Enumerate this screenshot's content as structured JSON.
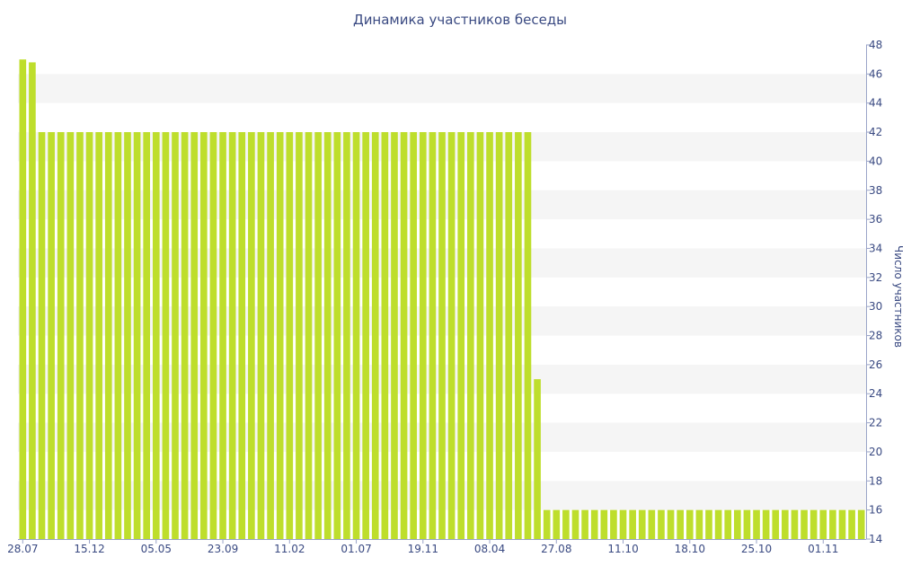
{
  "chart_data": {
    "type": "bar",
    "title": "Динамика участников беседы",
    "xlabel": "",
    "ylabel": "Число участников",
    "ylim": [
      14,
      48
    ],
    "y_ticks": [
      14,
      16,
      18,
      20,
      22,
      24,
      26,
      28,
      30,
      32,
      34,
      36,
      38,
      40,
      42,
      44,
      46,
      48
    ],
    "x_tick_labels": [
      "28.07",
      "15.12",
      "05.05",
      "23.09",
      "11.02",
      "01.07",
      "19.11",
      "08.04",
      "27.08",
      "11.10",
      "18.10",
      "25.10",
      "01.11"
    ],
    "x_tick_bar_index": [
      0,
      7,
      14,
      21,
      28,
      35,
      42,
      49,
      56,
      63,
      70,
      77,
      84
    ],
    "grid": "horizontal bands",
    "y_axis_side": "right",
    "colors": {
      "bar": "#bede2c",
      "band": "#f5f5f5",
      "text": "#3a4a82",
      "axis": "#9aa4c8"
    },
    "values": [
      47,
      46.8,
      42,
      42,
      42,
      42,
      42,
      42,
      42,
      42,
      42,
      42,
      42,
      42,
      42,
      42,
      42,
      42,
      42,
      42,
      42,
      42,
      42,
      42,
      42,
      42,
      42,
      42,
      42,
      42,
      42,
      42,
      42,
      42,
      42,
      42,
      42,
      42,
      42,
      42,
      42,
      42,
      42,
      42,
      42,
      42,
      42,
      42,
      42,
      42,
      42,
      42,
      42,
      42,
      25,
      16,
      16,
      16,
      16,
      16,
      16,
      16,
      16,
      16,
      16,
      16,
      16,
      16,
      16,
      16,
      16,
      16,
      16,
      16,
      16,
      16,
      16,
      16,
      16,
      16,
      16,
      16,
      16,
      16,
      16,
      16,
      16,
      16,
      16
    ]
  }
}
